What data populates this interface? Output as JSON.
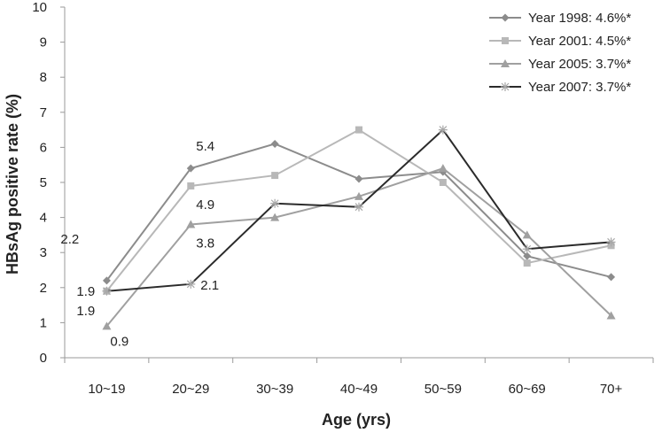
{
  "chart_data": {
    "type": "line",
    "xlabel": "Age (yrs)",
    "ylabel": "HBsAg positive rate (%)",
    "ylim": [
      0,
      10
    ],
    "yticks": [
      "0",
      "1",
      "2",
      "3",
      "4",
      "5",
      "6",
      "7",
      "8",
      "9",
      "10"
    ],
    "categories": [
      "10~19",
      "20~29",
      "30~39",
      "40~49",
      "50~59",
      "60~69",
      "70+"
    ],
    "legend_position": "top-right",
    "grid": false,
    "series": [
      {
        "name": "Year 1998: 4.6%*",
        "values": [
          2.2,
          5.4,
          6.1,
          5.1,
          5.3,
          2.9,
          2.3
        ],
        "color": "#8c8c8c",
        "marker": "diamond"
      },
      {
        "name": "Year 2001: 4.5%*",
        "values": [
          1.9,
          4.9,
          5.2,
          6.5,
          5.0,
          2.7,
          3.2
        ],
        "color": "#b8b8b8",
        "marker": "square"
      },
      {
        "name": "Year 2005: 3.7%*",
        "values": [
          0.9,
          3.8,
          4.0,
          4.6,
          5.4,
          3.5,
          1.2
        ],
        "color": "#a0a0a0",
        "marker": "triangle"
      },
      {
        "name": "Year 2007: 3.7%*",
        "values": [
          1.9,
          2.1,
          4.4,
          4.3,
          6.5,
          3.1,
          3.3
        ],
        "color": "#2b2b2b",
        "marker": "star"
      }
    ],
    "annotations": [
      {
        "text": "2.2",
        "series": 0,
        "index": 0
      },
      {
        "text": "5.4",
        "series": 0,
        "index": 1
      },
      {
        "text": "1.9",
        "series": 1,
        "index": 0
      },
      {
        "text": "4.9",
        "series": 1,
        "index": 1
      },
      {
        "text": "0.9",
        "series": 2,
        "index": 0
      },
      {
        "text": "3.8",
        "series": 2,
        "index": 1
      },
      {
        "text": "1.9",
        "series": 3,
        "index": 0
      },
      {
        "text": "2.1",
        "series": 3,
        "index": 1
      }
    ]
  }
}
